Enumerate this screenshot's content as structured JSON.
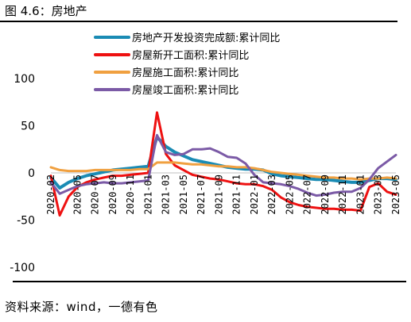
{
  "title": "图 4.6：房地产",
  "source": "资料来源：wind，一德有色",
  "chart_data": {
    "type": "line",
    "ylim": [
      -100,
      100
    ],
    "yticks": [
      -100,
      -50,
      0,
      50,
      100
    ],
    "grid": false,
    "legend_position": "top",
    "categories": [
      "2020-02",
      "2020-03",
      "2020-04",
      "2020-05",
      "2020-06",
      "2020-07",
      "2020-08",
      "2020-09",
      "2020-10",
      "2020-11",
      "2020-12",
      "2021-01",
      "2021-02",
      "2021-03",
      "2021-04",
      "2021-05",
      "2021-06",
      "2021-07",
      "2021-08",
      "2021-09",
      "2021-10",
      "2021-11",
      "2021-12",
      "2022-01",
      "2022-02",
      "2022-03",
      "2022-04",
      "2022-05",
      "2022-06",
      "2022-07",
      "2022-08",
      "2022-09",
      "2022-10",
      "2022-11",
      "2022-12",
      "2023-01",
      "2023-02",
      "2023-03",
      "2023-04",
      "2023-05"
    ],
    "tick_labels": [
      "2020-02",
      "2020-05",
      "2020-07",
      "2020-09",
      "2020-11",
      "2021-01",
      "2021-03",
      "2021-05",
      "2021-07",
      "2021-09",
      "2021-11",
      "2022-01",
      "2022-03",
      "2022-05",
      "2022-07",
      "2022-09",
      "2022-11",
      "2023-01",
      "2023-03",
      "2023-05"
    ],
    "series": [
      {
        "name": "房地产开发投资完成额:累计同比",
        "color": "#1a8bb4",
        "width": 4,
        "values": [
          -5,
          -16,
          -10,
          -6,
          -3,
          -1,
          1,
          3,
          4,
          5,
          6,
          7,
          38,
          28,
          22,
          18,
          14,
          12,
          10,
          8,
          6,
          5,
          4,
          4,
          3,
          -1,
          -3,
          -4,
          -5,
          -6,
          -7,
          -7,
          -8,
          -9,
          -10,
          -10,
          -8,
          -6,
          -6,
          -7
        ]
      },
      {
        "name": "房屋新开工面积:累计同比",
        "color": "#ee1111",
        "width": 3,
        "values": [
          -3,
          -45,
          -25,
          -15,
          -10,
          -7,
          -5,
          -3,
          -3,
          -2,
          -1,
          0,
          64,
          20,
          8,
          3,
          -2,
          -4,
          -6,
          -7,
          -9,
          -11,
          -12,
          -12,
          -14,
          -18,
          -26,
          -31,
          -34,
          -36,
          -37,
          -38,
          -38,
          -39,
          -39,
          -40,
          -15,
          -11,
          -20,
          -23
        ]
      },
      {
        "name": "房屋施工面积:累计同比",
        "color": "#f0a040",
        "width": 3,
        "values": [
          6,
          3,
          2,
          2,
          2,
          3,
          3,
          3,
          3,
          3,
          4,
          4,
          11,
          11,
          11,
          10,
          9,
          9,
          8,
          7,
          7,
          6,
          6,
          5,
          3,
          1,
          0,
          -1,
          -2,
          -3,
          -4,
          -5,
          -5,
          -6,
          -6,
          -7,
          -6,
          -6,
          -5,
          -6
        ]
      },
      {
        "name": "房屋竣工面积:累计同比",
        "color": "#7b5aa6",
        "width": 3,
        "values": [
          -10,
          -22,
          -18,
          -14,
          -12,
          -11,
          -10,
          -11,
          -11,
          -10,
          -9,
          -8,
          40,
          22,
          19,
          20,
          25,
          25,
          26,
          22,
          17,
          16,
          10,
          -2,
          -10,
          -11,
          -12,
          -14,
          -17,
          -21,
          -24,
          -23,
          -21,
          -20,
          -20,
          -16,
          -7,
          5,
          12,
          19
        ]
      }
    ]
  }
}
